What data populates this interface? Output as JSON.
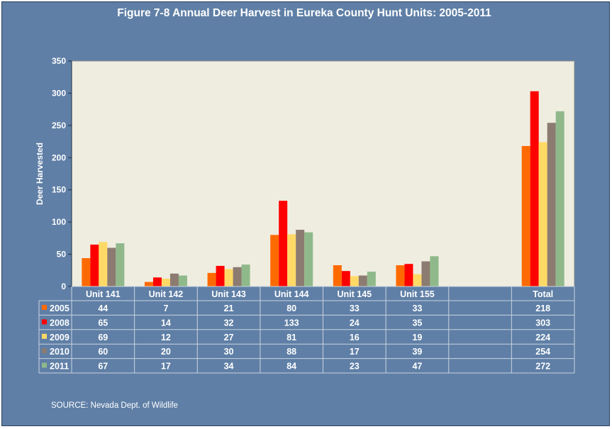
{
  "title": "Figure 7-8 Annual Deer Harvest in Eureka County Hunt Units: 2005-2011",
  "source": "SOURCE: Nevada Dept. of Wildlife",
  "colors": {
    "background": "#5f7fa6",
    "plot_area": "#efede0",
    "series": [
      "#ff6a00",
      "#ff0000",
      "#ffd966",
      "#8c7b70",
      "#8fb98a"
    ]
  },
  "chart_data": {
    "type": "bar",
    "title": "Figure 7-8 Annual Deer Harvest in Eureka County Hunt Units: 2005-2011",
    "ylabel": "Deer Harvested",
    "xlabel": "",
    "ylim": [
      0,
      350
    ],
    "yticks": [
      0,
      50,
      100,
      150,
      200,
      250,
      300,
      350
    ],
    "grid": false,
    "legend": "data-table",
    "categories": [
      "Unit 141",
      "Unit 142",
      "Unit 143",
      "Unit 144",
      "Unit 145",
      "Unit 155",
      "",
      "Total"
    ],
    "series": [
      {
        "name": "2005",
        "values": [
          44,
          7,
          21,
          80,
          33,
          33,
          null,
          218
        ]
      },
      {
        "name": "2008",
        "values": [
          65,
          14,
          32,
          133,
          24,
          35,
          null,
          303
        ]
      },
      {
        "name": "2009",
        "values": [
          69,
          12,
          27,
          81,
          16,
          19,
          null,
          224
        ]
      },
      {
        "name": "2010",
        "values": [
          60,
          20,
          30,
          88,
          17,
          39,
          null,
          254
        ]
      },
      {
        "name": "2011",
        "values": [
          67,
          17,
          34,
          84,
          23,
          47,
          null,
          272
        ]
      }
    ]
  }
}
